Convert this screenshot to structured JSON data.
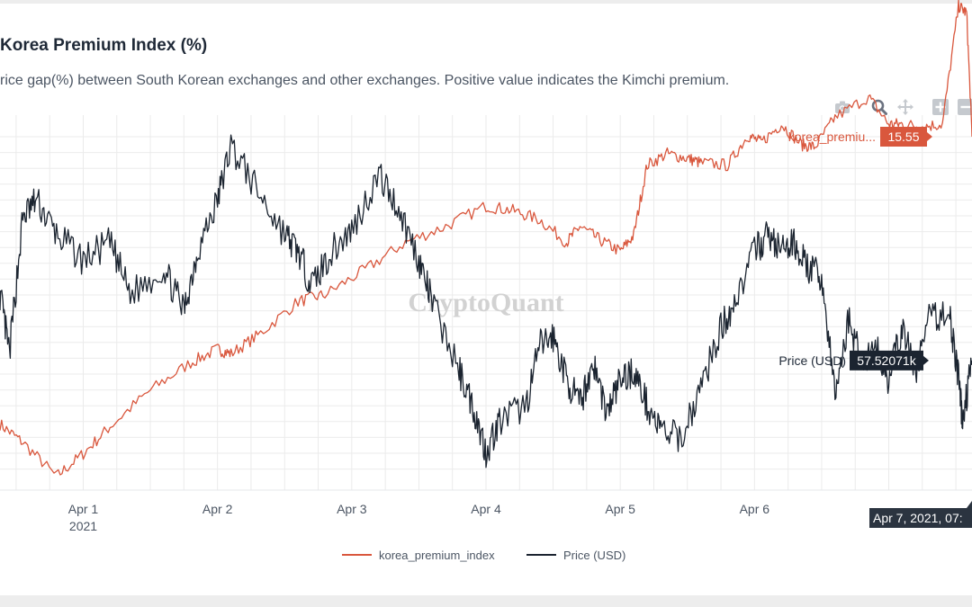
{
  "header": {
    "title": "Korea Premium Index (%)",
    "subtitle": "rice gap(%) between South Korean exchanges and other exchanges. Positive value indicates the Kimchi premium."
  },
  "modebar": {
    "icons": [
      "camera-icon",
      "zoom-icon",
      "pan-icon",
      "zoom-in-icon",
      "zoom-out-icon"
    ]
  },
  "watermark": "CryptoQuant",
  "colors": {
    "premium": "#d9573d",
    "price": "#1b2430",
    "grid": "#ebebeb",
    "axis_text": "#4b5563"
  },
  "chart_data": {
    "type": "line",
    "title": "Korea Premium Index (%)",
    "x_tick_labels": [
      {
        "label": "Apr 1",
        "sublabel": "2021"
      },
      {
        "label": "Apr 2",
        "sublabel": ""
      },
      {
        "label": "Apr 3",
        "sublabel": ""
      },
      {
        "label": "Apr 4",
        "sublabel": ""
      },
      {
        "label": "Apr 5",
        "sublabel": ""
      },
      {
        "label": "Apr 6",
        "sublabel": ""
      },
      {
        "label": "",
        "sublabel": ""
      }
    ],
    "x_range_days": [
      -0.62,
      6.62
    ],
    "series": [
      {
        "name": "korea_premium_index",
        "axis": "left",
        "color": "#d9573d",
        "ylim": [
          0,
          16.5
        ],
        "points": [
          [
            -0.62,
            2.9
          ],
          [
            -0.45,
            2.1
          ],
          [
            -0.2,
            0.6
          ],
          [
            0.0,
            1.6
          ],
          [
            0.2,
            2.8
          ],
          [
            0.5,
            4.4
          ],
          [
            0.8,
            5.6
          ],
          [
            1.0,
            6.2
          ],
          [
            1.1,
            6.0
          ],
          [
            1.3,
            6.8
          ],
          [
            1.6,
            8.3
          ],
          [
            1.8,
            8.6
          ],
          [
            2.1,
            9.7
          ],
          [
            2.4,
            10.9
          ],
          [
            2.7,
            11.6
          ],
          [
            3.0,
            12.5
          ],
          [
            3.2,
            12.3
          ],
          [
            3.4,
            11.9
          ],
          [
            3.6,
            10.9
          ],
          [
            3.7,
            11.6
          ],
          [
            3.85,
            11.0
          ],
          [
            4.0,
            10.5
          ],
          [
            4.1,
            11.2
          ],
          [
            4.2,
            14.3
          ],
          [
            4.35,
            14.8
          ],
          [
            4.5,
            14.6
          ],
          [
            4.6,
            14.4
          ],
          [
            4.8,
            14.3
          ],
          [
            4.95,
            15.6
          ],
          [
            5.05,
            15.3
          ],
          [
            5.2,
            16.1
          ],
          [
            5.35,
            15.2
          ],
          [
            5.45,
            15.1
          ],
          [
            5.6,
            16.4
          ],
          [
            5.85,
            17.3
          ],
          [
            6.0,
            16.1
          ],
          [
            6.1,
            16.1
          ],
          [
            6.25,
            16.0
          ],
          [
            6.4,
            16.1
          ],
          [
            6.52,
            21.3
          ],
          [
            6.58,
            21.0
          ],
          [
            6.62,
            15.55
          ]
        ],
        "last_value_label": "15.55",
        "hover_label": "korea_premiu..."
      },
      {
        "name": "Price (USD)",
        "axis": "right",
        "color": "#1b2430",
        "ylim": [
          56000,
          60400
        ],
        "points": [
          [
            -0.62,
            58300
          ],
          [
            -0.55,
            57600
          ],
          [
            -0.45,
            59200
          ],
          [
            -0.35,
            59400
          ],
          [
            -0.2,
            59000
          ],
          [
            0.0,
            58700
          ],
          [
            0.2,
            58900
          ],
          [
            0.35,
            58300
          ],
          [
            0.6,
            58600
          ],
          [
            0.75,
            58100
          ],
          [
            0.85,
            58800
          ],
          [
            1.0,
            59400
          ],
          [
            1.1,
            60050
          ],
          [
            1.3,
            59500
          ],
          [
            1.5,
            59000
          ],
          [
            1.6,
            58800
          ],
          [
            1.7,
            58400
          ],
          [
            1.85,
            58800
          ],
          [
            2.0,
            59050
          ],
          [
            2.2,
            59700
          ],
          [
            2.35,
            59300
          ],
          [
            2.5,
            58700
          ],
          [
            2.6,
            58200
          ],
          [
            2.8,
            57400
          ],
          [
            2.9,
            57000
          ],
          [
            3.0,
            56450
          ],
          [
            3.1,
            56800
          ],
          [
            3.3,
            57000
          ],
          [
            3.4,
            57700
          ],
          [
            3.5,
            57800
          ],
          [
            3.6,
            57300
          ],
          [
            3.7,
            57000
          ],
          [
            3.8,
            57500
          ],
          [
            3.9,
            56900
          ],
          [
            4.0,
            57300
          ],
          [
            4.1,
            57400
          ],
          [
            4.2,
            57000
          ],
          [
            4.3,
            56700
          ],
          [
            4.45,
            56600
          ],
          [
            4.6,
            57200
          ],
          [
            4.75,
            57900
          ],
          [
            4.85,
            58200
          ],
          [
            5.0,
            58800
          ],
          [
            5.1,
            59000
          ],
          [
            5.2,
            58800
          ],
          [
            5.3,
            58900
          ],
          [
            5.4,
            58600
          ],
          [
            5.5,
            58500
          ],
          [
            5.6,
            57100
          ],
          [
            5.7,
            58000
          ],
          [
            5.8,
            57500
          ],
          [
            5.9,
            57700
          ],
          [
            6.0,
            57300
          ],
          [
            6.1,
            57900
          ],
          [
            6.2,
            57400
          ],
          [
            6.3,
            58000
          ],
          [
            6.45,
            58100
          ],
          [
            6.52,
            57300
          ],
          [
            6.55,
            56800
          ],
          [
            6.62,
            57520.71
          ]
        ],
        "last_value_label": "57.52071k",
        "hover_label": "Price (USD)"
      }
    ],
    "hover_x_label": "Apr 7, 2021, 07:",
    "legend_position": "bottom-center",
    "grid": true
  },
  "legend": {
    "items": [
      {
        "name": "korea_premium_index",
        "color": "#d9573d"
      },
      {
        "name": "Price (USD)",
        "color": "#1b2430"
      }
    ]
  }
}
